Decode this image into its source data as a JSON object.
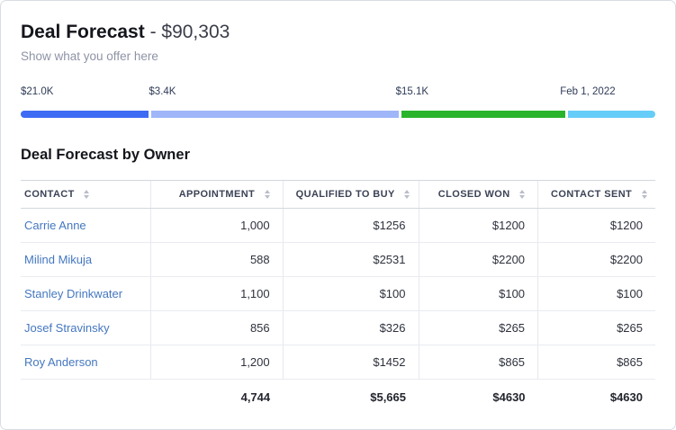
{
  "header": {
    "title": "Deal Forecast",
    "amount": " - $90,303",
    "subtitle": "Show what you offer here"
  },
  "progress": {
    "segments": [
      {
        "label": "$21.0K",
        "color": "#3d6bf3"
      },
      {
        "label": "$3.4K",
        "color": "#9fb6f9"
      },
      {
        "label": "$15.1K",
        "color": "#2ab42b"
      },
      {
        "label": "Feb 1, 2022",
        "color": "#66cdf8"
      }
    ]
  },
  "table": {
    "title": "Deal Forecast by Owner",
    "columns": [
      "CONTACT",
      "APPOINTMENT",
      "QUALIFIED TO BUY",
      "CLOSED WON",
      "CONTACT SENT"
    ],
    "rows": [
      {
        "contact": "Carrie Anne",
        "appointment": "1,000",
        "qualified": "$1256",
        "closed_won": "$1200",
        "contact_sent": "$1200"
      },
      {
        "contact": "Milind Mikuja",
        "appointment": "588",
        "qualified": "$2531",
        "closed_won": "$2200",
        "contact_sent": "$2200"
      },
      {
        "contact": "Stanley Drinkwater",
        "appointment": "1,100",
        "qualified": "$100",
        "closed_won": "$100",
        "contact_sent": "$100"
      },
      {
        "contact": "Josef Stravinsky",
        "appointment": "856",
        "qualified": "$326",
        "closed_won": "$265",
        "contact_sent": "$265"
      },
      {
        "contact": "Roy Anderson",
        "appointment": "1,200",
        "qualified": "$1452",
        "closed_won": "$865",
        "contact_sent": "$865"
      }
    ],
    "totals": {
      "appointment": "4,744",
      "qualified": "$5,665",
      "closed_won": "$4630",
      "contact_sent": "$4630"
    }
  },
  "colors": {
    "link": "#4477c0"
  }
}
